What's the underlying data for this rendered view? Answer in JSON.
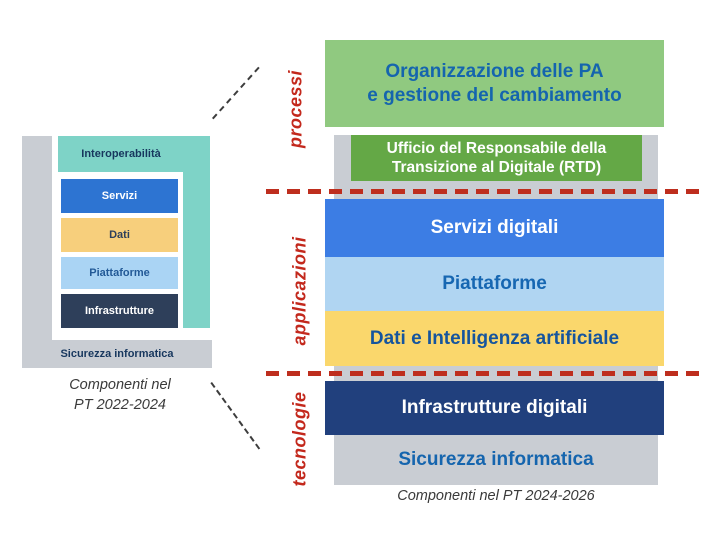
{
  "colors": {
    "teal": "#7ED3C7",
    "gray": "#C9CDD3",
    "red": "#BE2E1E",
    "red_label": "#C3281C",
    "left_blue": "#2D74D2",
    "left_yellow": "#F7CF7C",
    "left_lightblue": "#AAD4F4",
    "left_navy": "#2E3F5A",
    "green_light": "#90C980",
    "green_dark": "#64A846",
    "right_blue": "#3C7DE4",
    "right_lightblue": "#B0D5F2",
    "right_yellow": "#FAD76C",
    "right_navy": "#21407D",
    "text_blue": "#1565AE",
    "text_navy": "#17375E",
    "caption": "#3A3A3A"
  },
  "left_diagram": {
    "interoperability_label": "Interoperabilità",
    "blocks": [
      {
        "label": "Servizi"
      },
      {
        "label": "Dati"
      },
      {
        "label": "Piattaforme"
      },
      {
        "label": "Infrastrutture"
      }
    ],
    "security_label": "Sicurezza informatica",
    "caption_line1": "Componenti nel",
    "caption_line2": "PT 2022-2024"
  },
  "right_diagram": {
    "group_labels": [
      "processi",
      "applicazioni",
      "tecnologie"
    ],
    "org_line1": "Organizzazione delle PA",
    "org_line2": "e gestione del cambiamento",
    "rtd_line1": "Ufficio del Responsabile della",
    "rtd_line2": "Transizione al Digitale (RTD)",
    "servizi_label": "Servizi digitali",
    "piattaforme_label": "Piattaforme",
    "dati_label": "Dati e Intelligenza artificiale",
    "infrastrutture_label": "Infrastrutture digitali",
    "sicurezza_label": "Sicurezza informatica",
    "caption": "Componenti nel PT 2024-2026"
  }
}
